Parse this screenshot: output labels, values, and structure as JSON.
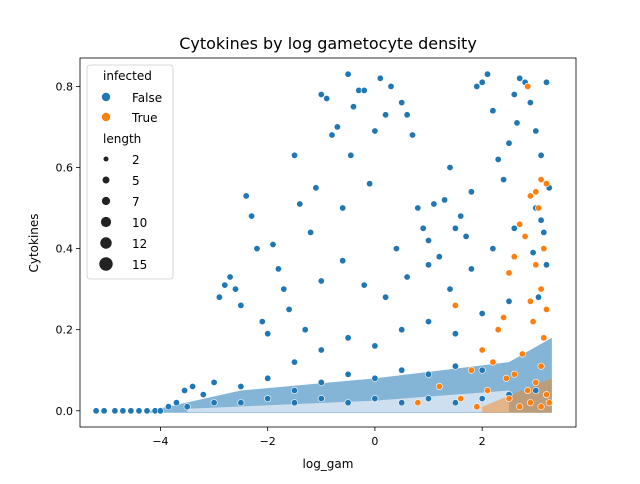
{
  "chart_data": {
    "type": "scatter",
    "title": "Cytokines by log gametocyte density",
    "xlabel": "log_gam",
    "ylabel": "Cytokines",
    "xlim": [
      -5.5,
      3.75
    ],
    "ylim": [
      -0.04,
      0.87
    ],
    "xticks": [
      -4,
      -2,
      0,
      2
    ],
    "yticks": [
      0.0,
      0.2,
      0.4,
      0.6,
      0.8
    ],
    "xtick_labels": [
      "−4",
      "−2",
      "0",
      "2"
    ],
    "ytick_labels": [
      "0.0",
      "0.2",
      "0.4",
      "0.6",
      "0.8"
    ],
    "grid": false,
    "legend": {
      "placement": "top-left",
      "hue_title": "infected",
      "hue_entries": [
        {
          "label": "False",
          "color": "#1f77b4"
        },
        {
          "label": "True",
          "color": "#ff7f0e"
        }
      ],
      "size_title": "length",
      "size_entries": [
        {
          "label": "2",
          "value": 2
        },
        {
          "label": "5",
          "value": 5
        },
        {
          "label": "7",
          "value": 7
        },
        {
          "label": "10",
          "value": 10
        },
        {
          "label": "12",
          "value": 12
        },
        {
          "label": "15",
          "value": 15
        }
      ]
    },
    "series": [
      {
        "name": "False",
        "color": "#1f77b4",
        "points": [
          [
            -5.2,
            0.0
          ],
          [
            -5.05,
            0.0
          ],
          [
            -4.85,
            0.0
          ],
          [
            -4.7,
            0.0
          ],
          [
            -4.55,
            0.0
          ],
          [
            -4.4,
            0.0
          ],
          [
            -4.25,
            0.0
          ],
          [
            -4.1,
            0.0
          ],
          [
            -4.0,
            0.0
          ],
          [
            -3.85,
            0.01
          ],
          [
            -3.7,
            0.02
          ],
          [
            -3.55,
            0.05
          ],
          [
            -3.4,
            0.06
          ],
          [
            -3.2,
            0.04
          ],
          [
            -3.0,
            0.07
          ],
          [
            -2.9,
            0.28
          ],
          [
            -2.8,
            0.31
          ],
          [
            -2.7,
            0.33
          ],
          [
            -2.6,
            0.3
          ],
          [
            -2.5,
            0.26
          ],
          [
            -2.4,
            0.53
          ],
          [
            -2.3,
            0.48
          ],
          [
            -2.2,
            0.4
          ],
          [
            -2.1,
            0.22
          ],
          [
            -2.0,
            0.19
          ],
          [
            -1.9,
            0.41
          ],
          [
            -1.8,
            0.35
          ],
          [
            -1.7,
            0.3
          ],
          [
            -1.6,
            0.25
          ],
          [
            -1.5,
            0.63
          ],
          [
            -1.4,
            0.51
          ],
          [
            -1.3,
            0.2
          ],
          [
            -1.2,
            0.44
          ],
          [
            -1.1,
            0.55
          ],
          [
            -1.0,
            0.78
          ],
          [
            -0.9,
            0.77
          ],
          [
            -0.8,
            0.68
          ],
          [
            -0.7,
            0.7
          ],
          [
            -0.6,
            0.5
          ],
          [
            -0.5,
            0.83
          ],
          [
            -0.45,
            0.63
          ],
          [
            -0.4,
            0.75
          ],
          [
            -0.3,
            0.79
          ],
          [
            -0.2,
            0.79
          ],
          [
            -0.1,
            0.56
          ],
          [
            0.0,
            0.69
          ],
          [
            0.1,
            0.82
          ],
          [
            0.2,
            0.73
          ],
          [
            0.3,
            0.8
          ],
          [
            0.4,
            0.4
          ],
          [
            0.5,
            0.76
          ],
          [
            0.6,
            0.73
          ],
          [
            0.7,
            0.68
          ],
          [
            0.8,
            0.5
          ],
          [
            0.9,
            0.45
          ],
          [
            1.0,
            0.42
          ],
          [
            1.1,
            0.51
          ],
          [
            1.2,
            0.38
          ],
          [
            1.3,
            0.52
          ],
          [
            1.4,
            0.6
          ],
          [
            1.5,
            0.45
          ],
          [
            1.6,
            0.48
          ],
          [
            1.7,
            0.43
          ],
          [
            1.8,
            0.54
          ],
          [
            1.9,
            0.8
          ],
          [
            2.0,
            0.81
          ],
          [
            2.1,
            0.83
          ],
          [
            2.2,
            0.74
          ],
          [
            2.3,
            0.62
          ],
          [
            2.4,
            0.57
          ],
          [
            2.5,
            0.66
          ],
          [
            2.6,
            0.78
          ],
          [
            2.65,
            0.71
          ],
          [
            2.7,
            0.82
          ],
          [
            2.8,
            0.81
          ],
          [
            2.9,
            0.76
          ],
          [
            3.0,
            0.69
          ],
          [
            3.1,
            0.63
          ],
          [
            3.2,
            0.81
          ],
          [
            -1.0,
            0.32
          ],
          [
            -0.6,
            0.37
          ],
          [
            -0.2,
            0.31
          ],
          [
            0.2,
            0.28
          ],
          [
            0.6,
            0.33
          ],
          [
            1.0,
            0.36
          ],
          [
            1.4,
            0.3
          ],
          [
            1.8,
            0.35
          ],
          [
            2.2,
            0.4
          ],
          [
            2.6,
            0.45
          ],
          [
            3.0,
            0.5
          ],
          [
            -1.5,
            0.12
          ],
          [
            -1.0,
            0.15
          ],
          [
            -0.5,
            0.18
          ],
          [
            0.0,
            0.16
          ],
          [
            0.5,
            0.2
          ],
          [
            1.0,
            0.22
          ],
          [
            1.5,
            0.19
          ],
          [
            2.0,
            0.24
          ],
          [
            2.5,
            0.27
          ],
          [
            3.1,
            0.3
          ],
          [
            -2.5,
            0.06
          ],
          [
            -2.0,
            0.08
          ],
          [
            -1.5,
            0.05
          ],
          [
            -1.0,
            0.07
          ],
          [
            -0.5,
            0.09
          ],
          [
            0.0,
            0.08
          ],
          [
            0.5,
            0.1
          ],
          [
            1.0,
            0.09
          ],
          [
            1.5,
            0.11
          ],
          [
            2.0,
            0.1
          ],
          [
            -3.5,
            0.01
          ],
          [
            -3.0,
            0.02
          ],
          [
            -2.5,
            0.02
          ],
          [
            -2.0,
            0.03
          ],
          [
            -1.5,
            0.02
          ],
          [
            -1.0,
            0.03
          ],
          [
            -0.5,
            0.02
          ],
          [
            0.0,
            0.03
          ],
          [
            0.5,
            0.02
          ],
          [
            1.0,
            0.03
          ],
          [
            1.5,
            0.02
          ],
          [
            2.0,
            0.03
          ],
          [
            2.5,
            0.04
          ],
          [
            3.0,
            0.05
          ],
          [
            3.2,
            0.36
          ],
          [
            3.15,
            0.44
          ],
          [
            3.05,
            0.28
          ],
          [
            3.25,
            0.55
          ],
          [
            2.95,
            0.39
          ],
          [
            3.1,
            0.47
          ]
        ]
      },
      {
        "name": "True",
        "color": "#ff7f0e",
        "points": [
          [
            2.85,
            0.8
          ],
          [
            3.0,
            0.54
          ],
          [
            3.1,
            0.57
          ],
          [
            2.9,
            0.53
          ],
          [
            3.2,
            0.56
          ],
          [
            3.05,
            0.5
          ],
          [
            2.7,
            0.46
          ],
          [
            2.8,
            0.43
          ],
          [
            3.15,
            0.4
          ],
          [
            2.6,
            0.38
          ],
          [
            3.0,
            0.36
          ],
          [
            2.5,
            0.34
          ],
          [
            3.1,
            0.3
          ],
          [
            2.9,
            0.27
          ],
          [
            3.2,
            0.25
          ],
          [
            1.5,
            0.26
          ],
          [
            2.4,
            0.23
          ],
          [
            2.95,
            0.22
          ],
          [
            2.3,
            0.2
          ],
          [
            3.15,
            0.18
          ],
          [
            2.0,
            0.15
          ],
          [
            2.75,
            0.14
          ],
          [
            2.2,
            0.12
          ],
          [
            3.1,
            0.11
          ],
          [
            1.8,
            0.1
          ],
          [
            2.6,
            0.09
          ],
          [
            2.45,
            0.08
          ],
          [
            3.0,
            0.07
          ],
          [
            1.2,
            0.06
          ],
          [
            2.85,
            0.05
          ],
          [
            2.1,
            0.05
          ],
          [
            3.2,
            0.04
          ],
          [
            1.6,
            0.03
          ],
          [
            2.5,
            0.03
          ],
          [
            2.9,
            0.02
          ],
          [
            3.25,
            0.02
          ],
          [
            1.9,
            0.01
          ],
          [
            2.7,
            0.01
          ],
          [
            3.1,
            0.01
          ],
          [
            0.8,
            0.02
          ]
        ]
      }
    ]
  }
}
